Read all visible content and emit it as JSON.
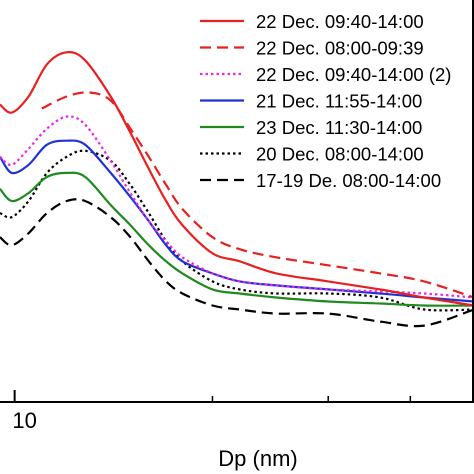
{
  "chart_data": {
    "type": "line",
    "xlabel": "Dp (nm)",
    "x_scale": "log",
    "x_ticks": [
      {
        "value": 10,
        "label": "10"
      }
    ],
    "xlim": [
      9.5,
      50
    ],
    "ylim": [
      0,
      1
    ],
    "legend_position": "top-right",
    "series": [
      {
        "name": "22 Dec. 09:40-14:00",
        "color": "#e8201f",
        "style": "solid",
        "points": [
          [
            9.5,
            0.74
          ],
          [
            9.9,
            0.72
          ],
          [
            10.5,
            0.76
          ],
          [
            11.2,
            0.84
          ],
          [
            12.0,
            0.87
          ],
          [
            12.8,
            0.85
          ],
          [
            14,
            0.76
          ],
          [
            15,
            0.67
          ],
          [
            16,
            0.58
          ],
          [
            17,
            0.5
          ],
          [
            18,
            0.44
          ],
          [
            20,
            0.37
          ],
          [
            22,
            0.35
          ],
          [
            25,
            0.32
          ],
          [
            30,
            0.3
          ],
          [
            36,
            0.28
          ],
          [
            42,
            0.26
          ],
          [
            50,
            0.24
          ]
        ]
      },
      {
        "name": "22 Dec. 08:00-09:39",
        "color": "#e8201f",
        "style": "dashed",
        "points": [
          [
            11.0,
            0.73
          ],
          [
            12.0,
            0.76
          ],
          [
            13.0,
            0.77
          ],
          [
            14,
            0.75
          ],
          [
            15,
            0.68
          ],
          [
            16,
            0.61
          ],
          [
            17,
            0.54
          ],
          [
            18,
            0.48
          ],
          [
            20,
            0.41
          ],
          [
            22,
            0.38
          ],
          [
            25,
            0.36
          ],
          [
            30,
            0.34
          ],
          [
            36,
            0.32
          ],
          [
            42,
            0.3
          ],
          [
            50,
            0.26
          ]
        ]
      },
      {
        "name": "22 Dec. 09:40-14:00 (2)",
        "color": "#ee23ee",
        "style": "dotted",
        "points": [
          [
            9.5,
            0.61
          ],
          [
            9.9,
            0.59
          ],
          [
            10.5,
            0.63
          ],
          [
            11.2,
            0.68
          ],
          [
            12.0,
            0.71
          ],
          [
            12.8,
            0.69
          ],
          [
            14,
            0.6
          ],
          [
            15,
            0.52
          ],
          [
            16,
            0.45
          ],
          [
            17,
            0.4
          ],
          [
            18,
            0.36
          ],
          [
            20,
            0.32
          ],
          [
            22,
            0.3
          ],
          [
            25,
            0.29
          ],
          [
            30,
            0.28
          ],
          [
            36,
            0.275
          ],
          [
            42,
            0.27
          ],
          [
            50,
            0.26
          ]
        ]
      },
      {
        "name": "21 Dec. 11:55-14:00",
        "color": "#1f32d6",
        "style": "solid",
        "points": [
          [
            9.5,
            0.61
          ],
          [
            9.9,
            0.57
          ],
          [
            10.5,
            0.59
          ],
          [
            11.2,
            0.64
          ],
          [
            12.0,
            0.65
          ],
          [
            12.8,
            0.64
          ],
          [
            14,
            0.57
          ],
          [
            15,
            0.51
          ],
          [
            16,
            0.45
          ],
          [
            17,
            0.39
          ],
          [
            18,
            0.35
          ],
          [
            20,
            0.32
          ],
          [
            22,
            0.3
          ],
          [
            25,
            0.29
          ],
          [
            30,
            0.28
          ],
          [
            36,
            0.27
          ],
          [
            42,
            0.26
          ],
          [
            50,
            0.25
          ]
        ]
      },
      {
        "name": "23 Dec. 11:30-14:00",
        "color": "#1f8a1f",
        "style": "solid",
        "points": [
          [
            9.5,
            0.53
          ],
          [
            9.9,
            0.5
          ],
          [
            10.5,
            0.52
          ],
          [
            11.2,
            0.56
          ],
          [
            12.0,
            0.57
          ],
          [
            12.8,
            0.56
          ],
          [
            14,
            0.49
          ],
          [
            15,
            0.44
          ],
          [
            16,
            0.39
          ],
          [
            17,
            0.35
          ],
          [
            18,
            0.32
          ],
          [
            20,
            0.28
          ],
          [
            22,
            0.27
          ],
          [
            25,
            0.26
          ],
          [
            30,
            0.25
          ],
          [
            36,
            0.245
          ],
          [
            42,
            0.24
          ],
          [
            50,
            0.24
          ]
        ]
      },
      {
        "name": "20 Dec. 08:00-14:00",
        "color": "#000000",
        "style": "dotted",
        "points": [
          [
            9.5,
            0.47
          ],
          [
            9.9,
            0.46
          ],
          [
            10.5,
            0.5
          ],
          [
            11.2,
            0.57
          ],
          [
            12.0,
            0.61
          ],
          [
            12.8,
            0.625
          ],
          [
            14,
            0.6
          ],
          [
            15,
            0.54
          ],
          [
            16,
            0.47
          ],
          [
            17,
            0.4
          ],
          [
            18,
            0.35
          ],
          [
            20,
            0.3
          ],
          [
            22,
            0.28
          ],
          [
            25,
            0.27
          ],
          [
            30,
            0.27
          ],
          [
            36,
            0.26
          ],
          [
            42,
            0.23
          ],
          [
            50,
            0.23
          ]
        ]
      },
      {
        "name": "17-19 De. 08:00-14:00",
        "color": "#000000",
        "style": "dashed",
        "points": [
          [
            9.5,
            0.41
          ],
          [
            9.9,
            0.39
          ],
          [
            10.5,
            0.42
          ],
          [
            11.2,
            0.47
          ],
          [
            12.0,
            0.5
          ],
          [
            12.8,
            0.5
          ],
          [
            14,
            0.46
          ],
          [
            15,
            0.41
          ],
          [
            16,
            0.35
          ],
          [
            17,
            0.3
          ],
          [
            18,
            0.27
          ],
          [
            20,
            0.24
          ],
          [
            22,
            0.23
          ],
          [
            25,
            0.22
          ],
          [
            30,
            0.22
          ],
          [
            36,
            0.2
          ],
          [
            42,
            0.19
          ],
          [
            50,
            0.23
          ]
        ]
      }
    ]
  }
}
